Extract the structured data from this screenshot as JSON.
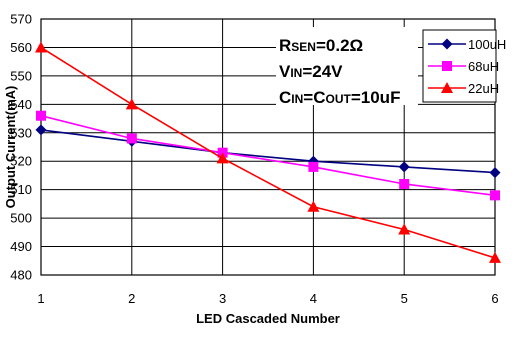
{
  "chart_data": {
    "type": "line",
    "title": "",
    "xlabel": "LED Cascaded Number",
    "ylabel": "Output Current(mA)",
    "x": [
      1,
      2,
      3,
      4,
      5,
      6
    ],
    "x_tick_labels": [
      "1",
      "2",
      "3",
      "4",
      "5",
      "6"
    ],
    "xlim": [
      1,
      6
    ],
    "ylim": [
      480,
      570
    ],
    "y_ticks": [
      480,
      490,
      500,
      510,
      520,
      530,
      540,
      550,
      560,
      570
    ],
    "y_tick_labels": [
      "480",
      "490",
      "500",
      "510",
      "520",
      "530",
      "540",
      "550",
      "560",
      "570"
    ],
    "grid": true,
    "legend_position": "top-right",
    "series": [
      {
        "name": "100uH",
        "color": "#000080",
        "marker": "diamond",
        "values": [
          531,
          527,
          523,
          520,
          518,
          516
        ]
      },
      {
        "name": "68uH",
        "color": "#ff00ff",
        "marker": "square",
        "values": [
          536,
          528,
          523,
          518,
          512,
          508
        ]
      },
      {
        "name": "22uH",
        "color": "#ff0000",
        "marker": "triangle",
        "values": [
          560,
          540,
          521,
          504,
          496,
          486
        ]
      }
    ],
    "annotations": [
      {
        "parts": [
          {
            "text": "R",
            "sub": false
          },
          {
            "text": "SEN",
            "sub": true
          },
          {
            "text": "=0.2Ω",
            "sub": false
          }
        ]
      },
      {
        "parts": [
          {
            "text": "V",
            "sub": false
          },
          {
            "text": "IN",
            "sub": true
          },
          {
            "text": "=24V",
            "sub": false
          }
        ]
      },
      {
        "parts": [
          {
            "text": "C",
            "sub": false
          },
          {
            "text": "IN",
            "sub": true
          },
          {
            "text": "=C",
            "sub": false
          },
          {
            "text": "OUT",
            "sub": true
          },
          {
            "text": "=10uF",
            "sub": false
          }
        ]
      }
    ]
  }
}
